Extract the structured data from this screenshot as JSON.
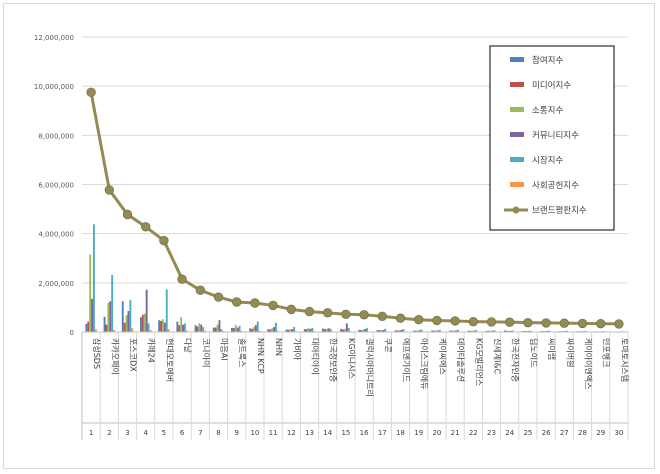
{
  "chart_data": {
    "type": "bar",
    "title": "",
    "xlabel": "",
    "ylabel": "",
    "ylim": [
      0,
      12000000
    ],
    "y_ticks": [
      "0",
      "2,000,000",
      "4,000,000",
      "6,000,000",
      "8,000,000",
      "10,000,000",
      "12,000,000"
    ],
    "y_tick_values": [
      0,
      2000000,
      4000000,
      6000000,
      8000000,
      10000000,
      12000000
    ],
    "grid": true,
    "legend_position": "right",
    "categories": [
      "삼성SDS",
      "카카오페이",
      "포스코DX",
      "카페24",
      "현대오토에버",
      "다날",
      "코나아이",
      "마음AI",
      "솔트룩스",
      "NHN KCP",
      "NHN",
      "가비아",
      "대아티아이",
      "한국정보인증",
      "KG이니시스",
      "갤럭시아머니트리",
      "쿠콘",
      "에프엔가이드",
      "아이스크림에듀",
      "케이씨에스",
      "데이타솔루션",
      "KG모빌리언스",
      "신세계I&C",
      "한국전자인증",
      "딥노이드",
      "씨이랩",
      "싸이버원",
      "케이아이엔엑스",
      "인포뱅크",
      "토마토시스템"
    ],
    "category_numbers": [
      "1",
      "2",
      "3",
      "4",
      "5",
      "6",
      "7",
      "8",
      "9",
      "10",
      "11",
      "12",
      "13",
      "14",
      "15",
      "16",
      "17",
      "18",
      "19",
      "20",
      "21",
      "22",
      "23",
      "24",
      "25",
      "26",
      "27",
      "28",
      "29",
      "30"
    ],
    "series": [
      {
        "name": "참여지수",
        "color": "#4f81bd",
        "type": "bar",
        "values": [
          330000,
          620000,
          1250000,
          600000,
          480000,
          420000,
          280000,
          180000,
          170000,
          150000,
          120000,
          100000,
          120000,
          140000,
          130000,
          90000,
          80000,
          70000,
          60000,
          60000,
          55000,
          50000,
          45000,
          60000,
          40000,
          40000,
          35000,
          30000,
          25000,
          20000
        ]
      },
      {
        "name": "미디어지수",
        "color": "#c0504d",
        "type": "bar",
        "values": [
          420000,
          300000,
          380000,
          700000,
          450000,
          280000,
          220000,
          180000,
          160000,
          130000,
          100000,
          90000,
          110000,
          120000,
          100000,
          80000,
          70000,
          60000,
          50000,
          50000,
          50000,
          45000,
          45000,
          50000,
          40000,
          35000,
          30000,
          30000,
          25000,
          20000
        ]
      },
      {
        "name": "소통지수",
        "color": "#9bbb59",
        "type": "bar",
        "values": [
          3150000,
          1180000,
          680000,
          750000,
          520000,
          600000,
          350000,
          300000,
          290000,
          200000,
          150000,
          110000,
          160000,
          130000,
          130000,
          90000,
          80000,
          80000,
          60000,
          60000,
          60000,
          45000,
          50000,
          45000,
          40000,
          40000,
          35000,
          30000,
          20000,
          20000
        ]
      },
      {
        "name": "커뮤니티지수",
        "color": "#8064a2",
        "type": "bar",
        "values": [
          1350000,
          1250000,
          850000,
          1720000,
          380000,
          300000,
          300000,
          480000,
          180000,
          280000,
          200000,
          120000,
          120000,
          150000,
          350000,
          120000,
          80000,
          80000,
          70000,
          60000,
          60000,
          55000,
          50000,
          45000,
          40000,
          40000,
          35000,
          30000,
          25000,
          20000
        ]
      },
      {
        "name": "시장지수",
        "color": "#4bacc6",
        "type": "bar",
        "values": [
          4380000,
          2320000,
          1300000,
          350000,
          1730000,
          350000,
          200000,
          120000,
          250000,
          430000,
          380000,
          210000,
          170000,
          130000,
          160000,
          160000,
          130000,
          120000,
          100000,
          90000,
          90000,
          80000,
          70000,
          60000,
          50000,
          55000,
          50000,
          40000,
          35000,
          30000
        ]
      },
      {
        "name": "사회공헌지수",
        "color": "#f79646",
        "type": "bar",
        "values": [
          120000,
          80000,
          150000,
          80000,
          120000,
          60000,
          50000,
          40000,
          40000,
          40000,
          30000,
          30000,
          30000,
          30000,
          30000,
          20000,
          20000,
          20000,
          20000,
          15000,
          15000,
          15000,
          15000,
          15000,
          10000,
          10000,
          10000,
          10000,
          10000,
          10000
        ]
      },
      {
        "name": "브랜드평판지수",
        "color": "#948a54",
        "type": "line",
        "values": [
          9750000,
          5780000,
          4780000,
          4280000,
          3720000,
          2150000,
          1700000,
          1420000,
          1220000,
          1180000,
          1080000,
          920000,
          830000,
          780000,
          720000,
          700000,
          640000,
          560000,
          500000,
          470000,
          450000,
          420000,
          410000,
          400000,
          380000,
          370000,
          360000,
          350000,
          340000,
          330000
        ]
      }
    ]
  }
}
